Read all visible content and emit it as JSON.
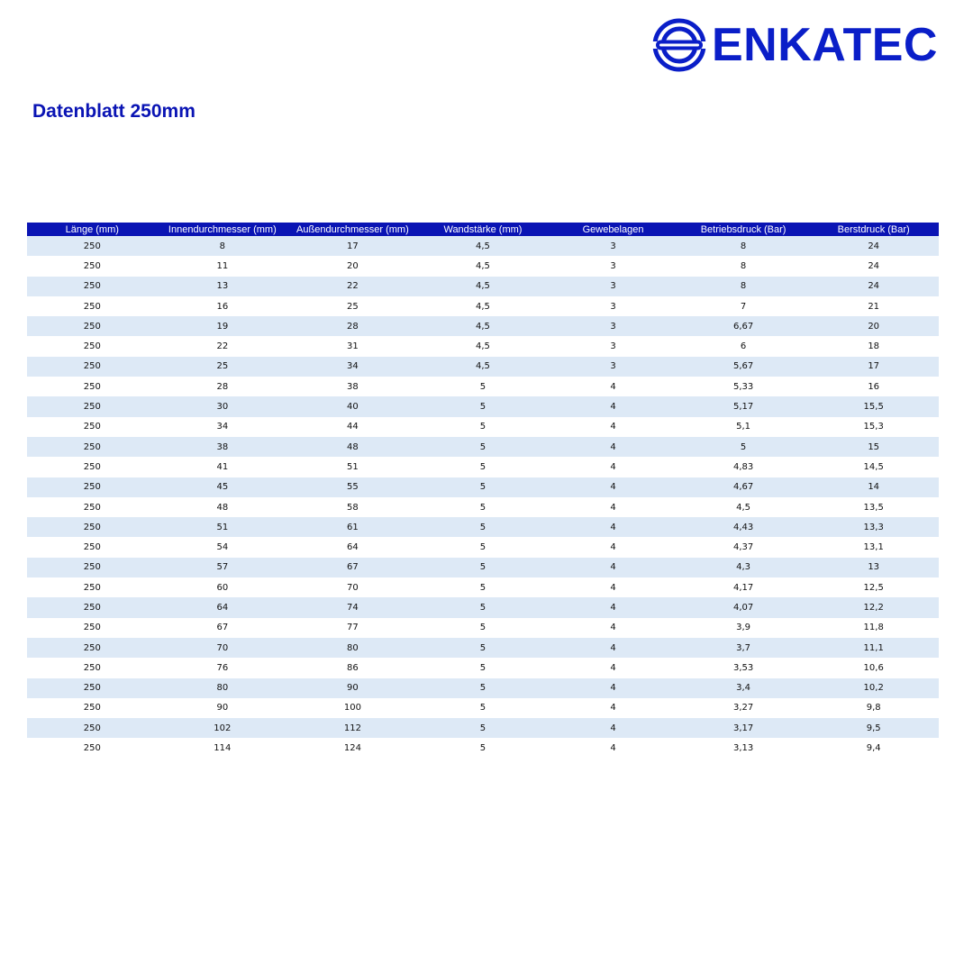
{
  "brand": {
    "name": "ENKATEC",
    "color": "#0a1ec8"
  },
  "document": {
    "title": "Datenblatt 250mm"
  },
  "table": {
    "columns": [
      "Länge (mm)",
      "Innendurchmesser (mm)",
      "Außendurchmesser (mm)",
      "Wandstärke (mm)",
      "Gewebelagen",
      "Betriebsdruck (Bar)",
      "Berstdruck (Bar)"
    ],
    "header_color": "#0a14b4",
    "stripe_color": "#dde9f6",
    "rows": [
      [
        "250",
        "8",
        "17",
        "4,5",
        "3",
        "8",
        "24"
      ],
      [
        "250",
        "11",
        "20",
        "4,5",
        "3",
        "8",
        "24"
      ],
      [
        "250",
        "13",
        "22",
        "4,5",
        "3",
        "8",
        "24"
      ],
      [
        "250",
        "16",
        "25",
        "4,5",
        "3",
        "7",
        "21"
      ],
      [
        "250",
        "19",
        "28",
        "4,5",
        "3",
        "6,67",
        "20"
      ],
      [
        "250",
        "22",
        "31",
        "4,5",
        "3",
        "6",
        "18"
      ],
      [
        "250",
        "25",
        "34",
        "4,5",
        "3",
        "5,67",
        "17"
      ],
      [
        "250",
        "28",
        "38",
        "5",
        "4",
        "5,33",
        "16"
      ],
      [
        "250",
        "30",
        "40",
        "5",
        "4",
        "5,17",
        "15,5"
      ],
      [
        "250",
        "34",
        "44",
        "5",
        "4",
        "5,1",
        "15,3"
      ],
      [
        "250",
        "38",
        "48",
        "5",
        "4",
        "5",
        "15"
      ],
      [
        "250",
        "41",
        "51",
        "5",
        "4",
        "4,83",
        "14,5"
      ],
      [
        "250",
        "45",
        "55",
        "5",
        "4",
        "4,67",
        "14"
      ],
      [
        "250",
        "48",
        "58",
        "5",
        "4",
        "4,5",
        "13,5"
      ],
      [
        "250",
        "51",
        "61",
        "5",
        "4",
        "4,43",
        "13,3"
      ],
      [
        "250",
        "54",
        "64",
        "5",
        "4",
        "4,37",
        "13,1"
      ],
      [
        "250",
        "57",
        "67",
        "5",
        "4",
        "4,3",
        "13"
      ],
      [
        "250",
        "60",
        "70",
        "5",
        "4",
        "4,17",
        "12,5"
      ],
      [
        "250",
        "64",
        "74",
        "5",
        "4",
        "4,07",
        "12,2"
      ],
      [
        "250",
        "67",
        "77",
        "5",
        "4",
        "3,9",
        "11,8"
      ],
      [
        "250",
        "70",
        "80",
        "5",
        "4",
        "3,7",
        "11,1"
      ],
      [
        "250",
        "76",
        "86",
        "5",
        "4",
        "3,53",
        "10,6"
      ],
      [
        "250",
        "80",
        "90",
        "5",
        "4",
        "3,4",
        "10,2"
      ],
      [
        "250",
        "90",
        "100",
        "5",
        "4",
        "3,27",
        "9,8"
      ],
      [
        "250",
        "102",
        "112",
        "5",
        "4",
        "3,17",
        "9,5"
      ],
      [
        "250",
        "114",
        "124",
        "5",
        "4",
        "3,13",
        "9,4"
      ]
    ]
  }
}
